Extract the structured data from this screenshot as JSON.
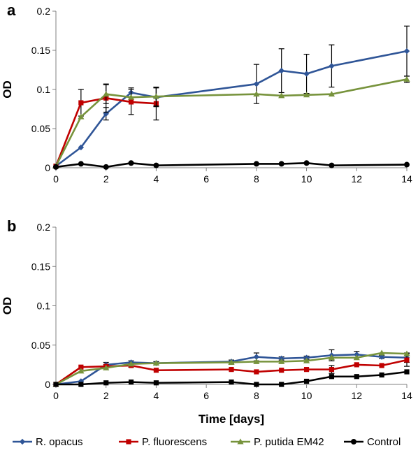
{
  "chart_data": [
    {
      "type": "line",
      "panel_label": "a",
      "ylabel": "OD",
      "xlabel": "",
      "xlim": [
        0,
        14
      ],
      "ylim": [
        0,
        0.2
      ],
      "x_ticks": [
        "0",
        "2",
        "4",
        "6",
        "8",
        "10",
        "12",
        "14"
      ],
      "y_ticks": [
        "0",
        "0.05",
        "0.1",
        "0.15",
        "0.2"
      ],
      "grid": false,
      "series": [
        {
          "name": "R. opacus",
          "color": "#2F5597",
          "marker": "diamond",
          "x": [
            0,
            1,
            2,
            3,
            4,
            8,
            9,
            10,
            11,
            14
          ],
          "y": [
            0.002,
            0.026,
            0.069,
            0.096,
            0.09,
            0.107,
            0.124,
            0.12,
            0.13,
            0.149
          ],
          "err": [
            0,
            0,
            0.008,
            0.006,
            0.012,
            0.025,
            0.028,
            0.025,
            0.027,
            0.032
          ]
        },
        {
          "name": "P. fluorescens",
          "color": "#C00000",
          "marker": "square",
          "x": [
            0,
            1,
            2,
            3,
            4
          ],
          "y": [
            0.002,
            0.083,
            0.089,
            0.084,
            0.082
          ],
          "err": [
            0,
            0.017,
            0.018,
            0.016,
            0.021
          ]
        },
        {
          "name": "P. putida EM42",
          "color": "#77933C",
          "marker": "triangle",
          "x": [
            0,
            1,
            2,
            3,
            4,
            8,
            9,
            10,
            11,
            14
          ],
          "y": [
            0.002,
            0.065,
            0.094,
            0.09,
            0.091,
            0.094,
            0.092,
            0.093,
            0.094,
            0.113
          ],
          "err": [
            0,
            0,
            0.012,
            0,
            0.012,
            0,
            0,
            0,
            0,
            0.004
          ]
        },
        {
          "name": "Control",
          "color": "#000000",
          "marker": "circle",
          "x": [
            0,
            1,
            2,
            3,
            4,
            8,
            9,
            10,
            11,
            14
          ],
          "y": [
            0.001,
            0.005,
            0.001,
            0.006,
            0.003,
            0.005,
            0.005,
            0.006,
            0.003,
            0.004
          ],
          "err": [
            0,
            0,
            0,
            0,
            0,
            0,
            0,
            0,
            0,
            0
          ]
        }
      ]
    },
    {
      "type": "line",
      "panel_label": "b",
      "ylabel": "OD",
      "xlabel": "Time [days]",
      "xlim": [
        0,
        14
      ],
      "ylim": [
        0,
        0.2
      ],
      "x_ticks": [
        "0",
        "2",
        "4",
        "6",
        "8",
        "10",
        "12",
        "14"
      ],
      "y_ticks": [
        "0",
        "0.05",
        "0.1",
        "0.15",
        "0.2"
      ],
      "grid": false,
      "series": [
        {
          "name": "R. opacus",
          "color": "#2F5597",
          "marker": "diamond",
          "x": [
            0,
            1,
            2,
            3,
            4,
            7,
            8,
            9,
            10,
            11,
            12,
            13,
            14
          ],
          "y": [
            0,
            0.004,
            0.025,
            0.028,
            0.027,
            0.029,
            0.035,
            0.033,
            0.034,
            0.037,
            0.038,
            0.035,
            0.034
          ],
          "err": [
            0,
            0,
            0.003,
            0.002,
            0.002,
            0.002,
            0.005,
            0.002,
            0.002,
            0.007,
            0.004,
            0.002,
            0.006
          ]
        },
        {
          "name": "P. fluorescens",
          "color": "#C00000",
          "marker": "square",
          "x": [
            0,
            1,
            2,
            3,
            4,
            7,
            8,
            9,
            10,
            11,
            12,
            13,
            14
          ],
          "y": [
            0,
            0.022,
            0.023,
            0.024,
            0.018,
            0.019,
            0.016,
            0.018,
            0.019,
            0.019,
            0.025,
            0.024,
            0.031
          ],
          "err": [
            0,
            0,
            0.002,
            0.002,
            0,
            0,
            0,
            0,
            0,
            0.005,
            0,
            0,
            0.008
          ]
        },
        {
          "name": "P. putida EM42",
          "color": "#77933C",
          "marker": "triangle",
          "x": [
            0,
            1,
            2,
            3,
            4,
            7,
            8,
            9,
            10,
            11,
            12,
            13,
            14
          ],
          "y": [
            0,
            0.017,
            0.021,
            0.026,
            0.027,
            0.028,
            0.029,
            0.029,
            0.03,
            0.034,
            0.034,
            0.04,
            0.039
          ],
          "err": [
            0,
            0,
            0,
            0,
            0,
            0,
            0,
            0,
            0,
            0,
            0,
            0,
            0
          ]
        },
        {
          "name": "Control",
          "color": "#000000",
          "marker": "square",
          "x": [
            0,
            1,
            2,
            3,
            4,
            7,
            8,
            9,
            10,
            11,
            12,
            13,
            14
          ],
          "y": [
            0,
            0,
            0.002,
            0.003,
            0.002,
            0.003,
            0,
            0,
            0.004,
            0.01,
            0.01,
            0.012,
            0.016
          ],
          "err": [
            0,
            0,
            0,
            0,
            0,
            0,
            0,
            0,
            0,
            0,
            0,
            0,
            0
          ]
        }
      ]
    }
  ],
  "legend": {
    "placement": "bottom",
    "entries": [
      {
        "label": "R. opacus",
        "color": "#2F5597",
        "marker": "diamond"
      },
      {
        "label": "P. fluorescens",
        "color": "#C00000",
        "marker": "square"
      },
      {
        "label": "P. putida EM42",
        "color": "#77933C",
        "marker": "triangle"
      },
      {
        "label": "Control",
        "color": "#000000",
        "marker": "circle"
      }
    ]
  }
}
